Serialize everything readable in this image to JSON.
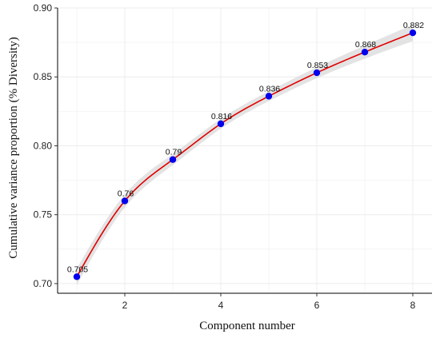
{
  "chart_data": {
    "type": "scatter",
    "title": "",
    "xlabel": "Component number",
    "ylabel": "Cumulative variance proportion (% Diversity)",
    "xlim": [
      0.6,
      8.4
    ],
    "ylim": [
      0.693,
      0.9
    ],
    "x_ticks": [
      2,
      4,
      6,
      8
    ],
    "y_ticks": [
      0.7,
      0.75,
      0.8,
      0.85,
      0.9
    ],
    "x_tick_labels": [
      "2",
      "4",
      "6",
      "8"
    ],
    "y_tick_labels": [
      "0.70",
      "0.75",
      "0.80",
      "0.85",
      "0.90"
    ],
    "grid": true,
    "legend": "none",
    "series": [
      {
        "x": [
          1,
          2,
          3,
          4,
          5,
          6,
          7,
          8
        ],
        "values": [
          0.705,
          0.76,
          0.79,
          0.816,
          0.836,
          0.853,
          0.868,
          0.882
        ],
        "labels": [
          "0.705",
          "0.76",
          "0.79",
          "0.816",
          "0.836",
          "0.853",
          "0.868",
          "0.882"
        ]
      }
    ],
    "fit_curve": {
      "type": "smooth",
      "color": "#e00000",
      "confidence_band_color": "#d9d9d9"
    },
    "colors": {
      "points": "#0000ee",
      "fit_line": "#e00000",
      "band": "#d9d9d9",
      "grid": "#ececec",
      "axis": "#000000"
    }
  }
}
